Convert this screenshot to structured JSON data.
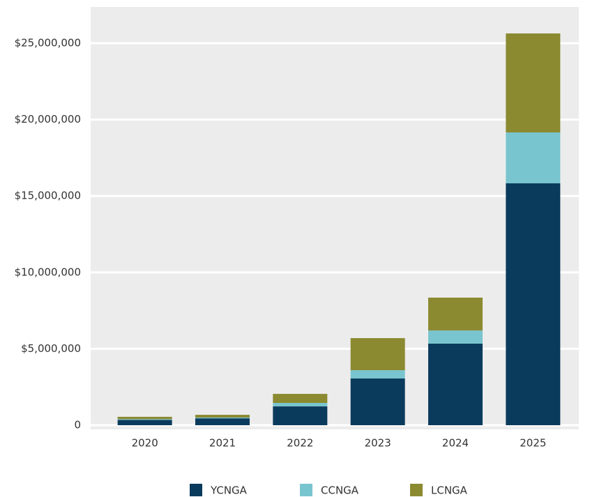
{
  "chart_data": {
    "type": "stacked-bar",
    "categories": [
      "2020",
      "2021",
      "2022",
      "2023",
      "2024",
      "2025"
    ],
    "series": [
      {
        "name": "YCNGA",
        "color": "#0b3b5c",
        "values": [
          350000,
          450000,
          1230000,
          3060000,
          5340000,
          15830000
        ]
      },
      {
        "name": "CCNGA",
        "color": "#79c5cf",
        "values": [
          50000,
          50000,
          230000,
          540000,
          860000,
          3330000
        ]
      },
      {
        "name": "LCNGA",
        "color": "#8b8a31",
        "values": [
          150000,
          180000,
          590000,
          2100000,
          2150000,
          6480000
        ]
      }
    ],
    "ylim": [
      0,
      25000000
    ],
    "yticks": [
      0,
      {
        "value": 5000000,
        "label": "$5,000,000"
      },
      {
        "value": 10000000,
        "label": "$10,000,000"
      },
      {
        "value": 15000000,
        "label": "$15,000,000"
      },
      {
        "value": 20000000,
        "label": "$20,000,000"
      },
      {
        "value": 25000000,
        "label": "$25,000,000"
      }
    ],
    "grid": true,
    "legend": "bottom"
  }
}
